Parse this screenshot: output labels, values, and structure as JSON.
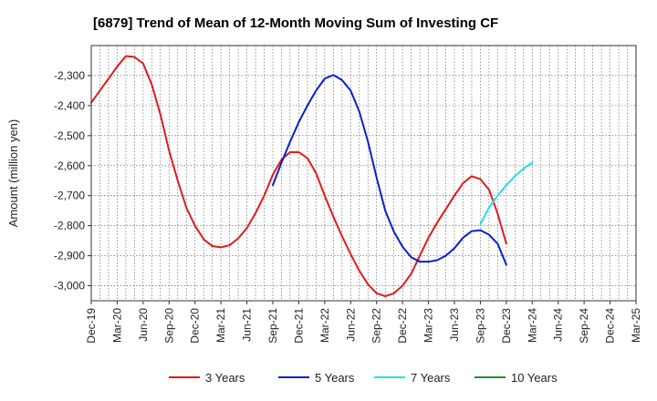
{
  "chart_data": {
    "type": "line",
    "title": "[6879]  Trend of Mean of 12-Month Moving Sum of Investing CF",
    "xlabel": "",
    "ylabel": "Amount (million yen)",
    "ylim": [
      -3050,
      -2200
    ],
    "yticks": [
      -2300,
      -2400,
      -2500,
      -2600,
      -2700,
      -2800,
      -2900,
      -3000
    ],
    "ytick_labels": [
      "-2,300",
      "-2,400",
      "-2,500",
      "-2,600",
      "-2,700",
      "-2,800",
      "-2,900",
      "-3,000"
    ],
    "x_categories": [
      "Dec-19",
      "Mar-20",
      "Jun-20",
      "Sep-20",
      "Dec-20",
      "Mar-21",
      "Jun-21",
      "Sep-21",
      "Dec-21",
      "Mar-22",
      "Jun-22",
      "Sep-22",
      "Dec-22",
      "Mar-23",
      "Jun-23",
      "Sep-23",
      "Dec-23",
      "Mar-24",
      "Jun-24",
      "Sep-24",
      "Dec-24",
      "Mar-25"
    ],
    "grid": true,
    "legend_position": "bottom",
    "series": [
      {
        "name": "3 Years",
        "color": "#e31a1c",
        "start_index": 0,
        "values": [
          -2390,
          -2350,
          -2310,
          -2270,
          -2235,
          -2238,
          -2260,
          -2330,
          -2430,
          -2550,
          -2650,
          -2740,
          -2800,
          -2845,
          -2868,
          -2872,
          -2865,
          -2842,
          -2808,
          -2758,
          -2700,
          -2630,
          -2580,
          -2555,
          -2555,
          -2575,
          -2625,
          -2700,
          -2770,
          -2835,
          -2895,
          -2950,
          -2995,
          -3025,
          -3035,
          -3025,
          -3000,
          -2960,
          -2900,
          -2840,
          -2790,
          -2745,
          -2700,
          -2658,
          -2635,
          -2645,
          -2680,
          -2760,
          -2860
        ]
      },
      {
        "name": "5 Years",
        "color": "#0a1fd0",
        "start_index": 21,
        "values": [
          -2665,
          -2590,
          -2520,
          -2455,
          -2400,
          -2350,
          -2310,
          -2298,
          -2315,
          -2350,
          -2420,
          -2520,
          -2640,
          -2750,
          -2820,
          -2870,
          -2905,
          -2920,
          -2920,
          -2915,
          -2900,
          -2875,
          -2840,
          -2818,
          -2815,
          -2830,
          -2860,
          -2930
        ]
      },
      {
        "name": "7 Years",
        "color": "#22e1e8",
        "start_index": 45,
        "values": [
          -2795,
          -2740,
          -2700,
          -2665,
          -2635,
          -2610,
          -2590
        ]
      },
      {
        "name": "10 Years",
        "color": "#2a8a2a",
        "start_index": 0,
        "values": []
      }
    ]
  }
}
